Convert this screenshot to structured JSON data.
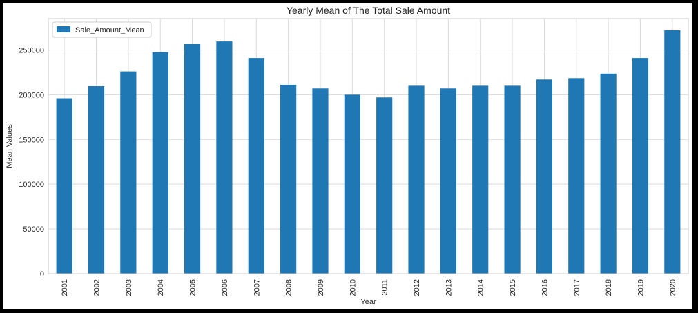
{
  "chart_data": {
    "type": "bar",
    "title": "Yearly Mean of The Total Sale Amount",
    "xlabel": "Year",
    "ylabel": "Mean Values",
    "categories": [
      "2001",
      "2002",
      "2003",
      "2004",
      "2005",
      "2006",
      "2007",
      "2008",
      "2009",
      "2010",
      "2011",
      "2012",
      "2013",
      "2014",
      "2015",
      "2016",
      "2017",
      "2018",
      "2019",
      "2020"
    ],
    "series": [
      {
        "name": "Sale_Amount_Mean",
        "values": [
          196000,
          209500,
          226000,
          247500,
          256500,
          259500,
          241000,
          211000,
          207000,
          200000,
          197000,
          210000,
          207000,
          210000,
          210000,
          217000,
          218500,
          223500,
          241000,
          272000
        ]
      }
    ],
    "yticks": [
      0,
      50000,
      100000,
      150000,
      200000,
      250000
    ],
    "ylim": [
      0,
      285000
    ],
    "grid": true,
    "legend_position": "top-left",
    "colors": {
      "bar": "#1f77b4",
      "grid": "#d9d9d9",
      "border": "#cccccc"
    }
  }
}
